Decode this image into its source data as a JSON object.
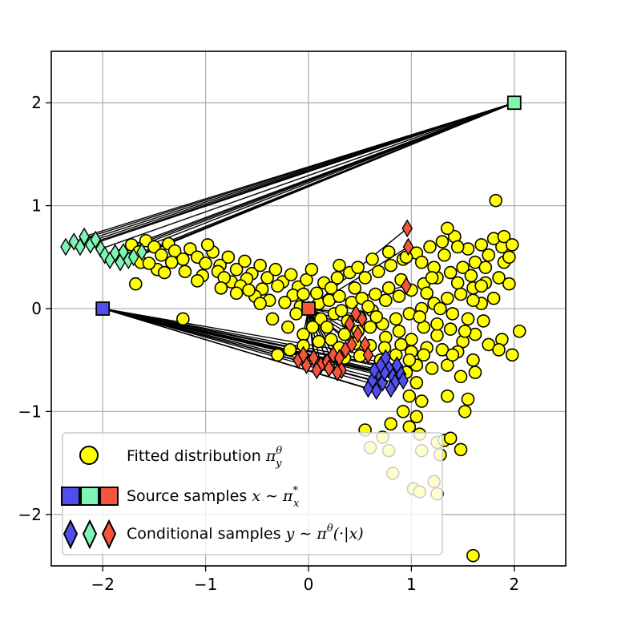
{
  "chart_data": {
    "type": "scatter",
    "title": "",
    "xlabel": "",
    "ylabel": "",
    "xlim": [
      -2.5,
      2.5
    ],
    "ylim": [
      -2.5,
      2.5
    ],
    "grid": true,
    "x_ticks": [
      -2,
      -1,
      0,
      1,
      2
    ],
    "y_ticks": [
      -2,
      -1,
      0,
      1,
      2
    ],
    "x_tick_labels": [
      "−2",
      "−1",
      "0",
      "1",
      "2"
    ],
    "y_tick_labels": [
      "−2",
      "−1",
      "0",
      "1",
      "2"
    ],
    "colors": {
      "fitted": "#ffff00",
      "source_blue": "#4f4ff0",
      "source_green": "#7ef5b0",
      "source_red": "#f5553a",
      "edge": "#000000",
      "grid": "#b0b0b0"
    },
    "series": [
      {
        "name": "Fitted distribution",
        "marker": "circle",
        "points": [
          [
            -1.72,
            0.62
          ],
          [
            -1.65,
            0.55
          ],
          [
            -1.58,
            0.66
          ],
          [
            -1.5,
            0.6
          ],
          [
            -1.43,
            0.52
          ],
          [
            -1.36,
            0.63
          ],
          [
            -1.3,
            0.56
          ],
          [
            -1.22,
            0.48
          ],
          [
            -1.15,
            0.58
          ],
          [
            -1.08,
            0.5
          ],
          [
            -1.0,
            0.44
          ],
          [
            -0.93,
            0.55
          ],
          [
            -0.86,
            0.42
          ],
          [
            -0.78,
            0.5
          ],
          [
            -0.7,
            0.38
          ],
          [
            -0.62,
            0.46
          ],
          [
            -0.55,
            0.34
          ],
          [
            -0.47,
            0.42
          ],
          [
            -0.4,
            0.3
          ],
          [
            -0.32,
            0.38
          ],
          [
            -0.25,
            0.26
          ],
          [
            -0.17,
            0.33
          ],
          [
            -0.1,
            0.21
          ],
          [
            -0.02,
            0.28
          ],
          [
            -1.63,
            0.45
          ],
          [
            -1.47,
            0.38
          ],
          [
            -1.33,
            0.45
          ],
          [
            -1.2,
            0.36
          ],
          [
            -1.03,
            0.32
          ],
          [
            -0.88,
            0.36
          ],
          [
            -0.75,
            0.26
          ],
          [
            -0.6,
            0.29
          ],
          [
            -0.45,
            0.19
          ],
          [
            -0.3,
            0.22
          ],
          [
            -0.15,
            0.13
          ],
          [
            -1.68,
            0.24
          ],
          [
            -1.22,
            -0.1
          ],
          [
            -0.98,
            0.62
          ],
          [
            -1.08,
            0.27
          ],
          [
            -1.4,
            0.35
          ],
          [
            -1.55,
            0.44
          ],
          [
            -0.82,
            0.3
          ],
          [
            -0.66,
            0.22
          ],
          [
            -0.52,
            0.12
          ],
          [
            -0.38,
            0.08
          ],
          [
            -0.23,
            0.06
          ],
          [
            -0.08,
            0.02
          ],
          [
            -0.47,
            0.05
          ],
          [
            -0.35,
            -0.1
          ],
          [
            -0.2,
            -0.18
          ],
          [
            -0.05,
            -0.25
          ],
          [
            0.03,
            0.38
          ],
          [
            -0.58,
            0.18
          ],
          [
            -0.7,
            0.15
          ],
          [
            -0.85,
            0.2
          ],
          [
            -0.3,
            -0.45
          ],
          [
            -0.18,
            -0.4
          ],
          [
            -0.05,
            -0.36
          ],
          [
            0.1,
            -0.32
          ],
          [
            0.22,
            -0.3
          ],
          [
            0.35,
            -0.25
          ],
          [
            0.48,
            -0.22
          ],
          [
            0.6,
            -0.18
          ],
          [
            0.72,
            -0.15
          ],
          [
            0.85,
            -0.1
          ],
          [
            0.98,
            -0.05
          ],
          [
            1.1,
            0.0
          ],
          [
            1.22,
            0.05
          ],
          [
            1.35,
            0.1
          ],
          [
            1.48,
            0.14
          ],
          [
            1.6,
            0.2
          ],
          [
            1.72,
            0.25
          ],
          [
            1.85,
            0.3
          ],
          [
            1.95,
            0.24
          ],
          [
            0.1,
            0.05
          ],
          [
            0.2,
            0.08
          ],
          [
            0.3,
            0.12
          ],
          [
            0.42,
            0.06
          ],
          [
            0.52,
            0.1
          ],
          [
            0.65,
            0.14
          ],
          [
            0.75,
            0.08
          ],
          [
            0.88,
            0.12
          ],
          [
            1.0,
            0.18
          ],
          [
            1.12,
            0.24
          ],
          [
            1.25,
            0.3
          ],
          [
            1.38,
            0.35
          ],
          [
            1.5,
            0.4
          ],
          [
            1.62,
            0.45
          ],
          [
            1.75,
            0.52
          ],
          [
            1.88,
            0.6
          ],
          [
            0.15,
            0.25
          ],
          [
            0.28,
            0.3
          ],
          [
            0.4,
            0.35
          ],
          [
            0.55,
            0.3
          ],
          [
            0.68,
            0.36
          ],
          [
            0.8,
            0.42
          ],
          [
            0.92,
            0.48
          ],
          [
            1.05,
            0.54
          ],
          [
            1.18,
            0.6
          ],
          [
            1.3,
            0.65
          ],
          [
            1.42,
            0.7
          ],
          [
            1.55,
            0.58
          ],
          [
            1.68,
            0.62
          ],
          [
            1.8,
            0.68
          ],
          [
            1.9,
            0.7
          ],
          [
            1.82,
            1.05
          ],
          [
            1.35,
            0.78
          ],
          [
            0.12,
            -0.1
          ],
          [
            0.25,
            -0.05
          ],
          [
            0.38,
            -0.12
          ],
          [
            0.5,
            -0.08
          ],
          [
            0.62,
            -0.02
          ],
          [
            0.75,
            -0.28
          ],
          [
            0.88,
            -0.22
          ],
          [
            1.0,
            -0.3
          ],
          [
            1.12,
            -0.18
          ],
          [
            1.25,
            -0.26
          ],
          [
            1.38,
            -0.2
          ],
          [
            1.5,
            -0.32
          ],
          [
            1.62,
            -0.25
          ],
          [
            1.75,
            -0.35
          ],
          [
            1.88,
            -0.3
          ],
          [
            1.98,
            -0.45
          ],
          [
            2.05,
            -0.22
          ],
          [
            1.85,
            -0.4
          ],
          [
            0.2,
            -0.5
          ],
          [
            0.35,
            -0.48
          ],
          [
            0.5,
            -0.46
          ],
          [
            0.7,
            -0.5
          ],
          [
            0.85,
            -0.45
          ],
          [
            1.0,
            -0.42
          ],
          [
            1.15,
            -0.38
          ],
          [
            1.3,
            -0.4
          ],
          [
            1.45,
            -0.42
          ],
          [
            1.6,
            -0.5
          ],
          [
            1.48,
            -0.66
          ],
          [
            1.62,
            -0.62
          ],
          [
            0.95,
            -0.62
          ],
          [
            1.05,
            -0.72
          ],
          [
            0.98,
            -0.85
          ],
          [
            1.1,
            -0.9
          ],
          [
            1.05,
            -1.05
          ],
          [
            0.92,
            -1.0
          ],
          [
            0.8,
            -1.12
          ],
          [
            0.72,
            -1.25
          ],
          [
            0.98,
            -1.15
          ],
          [
            1.08,
            -1.22
          ],
          [
            1.1,
            -1.38
          ],
          [
            0.78,
            -1.38
          ],
          [
            0.82,
            -1.6
          ],
          [
            1.25,
            -1.3
          ],
          [
            1.28,
            -1.42
          ],
          [
            1.32,
            -1.28
          ],
          [
            1.38,
            -1.26
          ],
          [
            1.22,
            -1.68
          ],
          [
            1.25,
            -1.8
          ],
          [
            1.02,
            -1.75
          ],
          [
            1.08,
            -1.78
          ],
          [
            1.48,
            -1.37
          ],
          [
            1.52,
            -1.0
          ],
          [
            1.55,
            -0.88
          ],
          [
            1.35,
            -0.85
          ],
          [
            0.55,
            -1.18
          ],
          [
            0.6,
            -1.35
          ],
          [
            1.6,
            -2.4
          ],
          [
            0.3,
            0.42
          ],
          [
            0.48,
            0.4
          ],
          [
            0.62,
            0.48
          ],
          [
            0.78,
            0.55
          ],
          [
            0.95,
            0.5
          ],
          [
            1.1,
            0.45
          ],
          [
            1.22,
            0.4
          ],
          [
            1.15,
            0.15
          ],
          [
            1.28,
            0.0
          ],
          [
            1.4,
            -0.05
          ],
          [
            1.55,
            -0.1
          ],
          [
            1.68,
            0.05
          ],
          [
            1.8,
            0.1
          ],
          [
            1.7,
            -0.12
          ],
          [
            1.58,
            0.32
          ],
          [
            1.45,
            0.25
          ],
          [
            1.32,
            0.52
          ],
          [
            1.2,
            0.3
          ],
          [
            1.08,
            -0.08
          ],
          [
            0.9,
            0.28
          ],
          [
            0.78,
            0.2
          ],
          [
            0.66,
            -0.08
          ],
          [
            0.58,
            0.02
          ],
          [
            0.45,
            0.2
          ],
          [
            0.32,
            -0.02
          ],
          [
            0.22,
            0.2
          ],
          [
            0.08,
            0.15
          ],
          [
            -0.05,
            0.14
          ],
          [
            -0.12,
            -0.05
          ],
          [
            0.04,
            -0.18
          ],
          [
            0.18,
            -0.18
          ],
          [
            0.3,
            -0.38
          ],
          [
            0.45,
            -0.34
          ],
          [
            0.6,
            -0.36
          ],
          [
            0.74,
            -0.38
          ],
          [
            0.9,
            -0.35
          ],
          [
            1.05,
            -0.55
          ],
          [
            1.2,
            -0.58
          ],
          [
            1.35,
            -0.55
          ],
          [
            1.9,
            0.45
          ],
          [
            1.95,
            0.5
          ],
          [
            1.98,
            0.62
          ],
          [
            1.72,
            0.4
          ],
          [
            1.6,
            0.08
          ],
          [
            1.45,
            0.6
          ],
          [
            1.68,
            0.22
          ],
          [
            1.52,
            -0.22
          ],
          [
            1.4,
            -0.45
          ],
          [
            1.25,
            -0.15
          ],
          [
            1.12,
            -0.45
          ],
          [
            0.98,
            -0.5
          ],
          [
            0.86,
            -0.58
          ],
          [
            0.7,
            -0.62
          ]
        ]
      },
      {
        "name": "Source samples",
        "marker": "square",
        "points": [
          [
            -2.0,
            0.0
          ],
          [
            2.0,
            2.0
          ],
          [
            0.0,
            0.0
          ]
        ],
        "colors": [
          "#4f4ff0",
          "#7ef5b0",
          "#f5553a"
        ]
      },
      {
        "name": "Conditional samples (blue)",
        "marker": "diamond",
        "color": "#4f4ff0",
        "points": [
          [
            0.62,
            -0.7
          ],
          [
            0.68,
            -0.62
          ],
          [
            0.72,
            -0.72
          ],
          [
            0.78,
            -0.58
          ],
          [
            0.82,
            -0.66
          ],
          [
            0.86,
            -0.55
          ],
          [
            0.75,
            -0.48
          ],
          [
            0.9,
            -0.64
          ],
          [
            0.58,
            -0.78
          ],
          [
            0.66,
            -0.8
          ],
          [
            0.74,
            -0.62
          ],
          [
            0.84,
            -0.72
          ],
          [
            0.7,
            -0.55
          ],
          [
            0.8,
            -0.78
          ],
          [
            0.92,
            -0.7
          ],
          [
            0.64,
            -0.6
          ]
        ]
      },
      {
        "name": "Conditional samples (green)",
        "marker": "diamond",
        "color": "#7ef5b0",
        "points": [
          [
            -2.36,
            0.6
          ],
          [
            -2.28,
            0.65
          ],
          [
            -2.22,
            0.6
          ],
          [
            -2.18,
            0.7
          ],
          [
            -2.12,
            0.62
          ],
          [
            -2.07,
            0.67
          ],
          [
            -2.02,
            0.58
          ],
          [
            -1.98,
            0.52
          ],
          [
            -1.93,
            0.47
          ],
          [
            -1.88,
            0.54
          ],
          [
            -1.83,
            0.45
          ],
          [
            -1.8,
            0.55
          ],
          [
            -1.75,
            0.47
          ],
          [
            -1.7,
            0.5
          ],
          [
            -1.62,
            0.55
          ]
        ]
      },
      {
        "name": "Conditional samples (red)",
        "marker": "diamond",
        "color": "#f5553a",
        "points": [
          [
            -0.1,
            -0.5
          ],
          [
            -0.02,
            -0.55
          ],
          [
            0.05,
            -0.48
          ],
          [
            0.12,
            -0.55
          ],
          [
            0.18,
            -0.52
          ],
          [
            0.24,
            -0.45
          ],
          [
            0.3,
            -0.48
          ],
          [
            0.36,
            -0.4
          ],
          [
            0.32,
            -0.6
          ],
          [
            0.42,
            -0.35
          ],
          [
            0.48,
            -0.25
          ],
          [
            0.52,
            -0.1
          ],
          [
            0.55,
            -0.35
          ],
          [
            0.28,
            -0.62
          ],
          [
            0.08,
            -0.6
          ],
          [
            0.96,
            0.78
          ],
          [
            0.97,
            0.6
          ],
          [
            0.95,
            0.22
          ],
          [
            0.46,
            -0.05
          ],
          [
            0.4,
            -0.15
          ],
          [
            0.58,
            -0.45
          ],
          [
            0.2,
            -0.58
          ],
          [
            -0.05,
            -0.45
          ]
        ]
      }
    ],
    "lines": [
      {
        "from": 0,
        "to_series": 2
      },
      {
        "from": 1,
        "to_series": 3
      },
      {
        "from": 2,
        "to_series": 4
      }
    ]
  },
  "legend": {
    "fitted_label": "Fitted distribution ",
    "fitted_sym": "π",
    "fitted_sup": "θ",
    "fitted_sub": "y",
    "source_label": "Source samples ",
    "source_expr": "x ∼ π",
    "source_sup": "*",
    "source_sub": "x",
    "cond_label": "Conditional samples ",
    "cond_expr": "y ∼ π",
    "cond_sup": "θ",
    "cond_tail": "(·|x)"
  }
}
